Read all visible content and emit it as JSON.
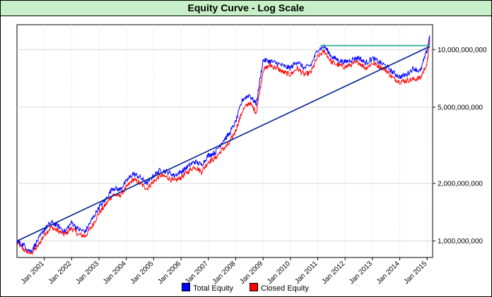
{
  "chart_data": {
    "type": "line",
    "title": "Equity Curve - Log Scale",
    "yscale": "log",
    "ylim": [
      820000000,
      13500000000
    ],
    "xlim": [
      2000.0,
      2015.2
    ],
    "y_ticks": [
      {
        "value": 1000000000,
        "label": "1,000,000,000"
      },
      {
        "value": 2000000000,
        "label": "2,000,000,000"
      },
      {
        "value": 5000000000,
        "label": "5,000,000,000"
      },
      {
        "value": 10000000000,
        "label": "10,000,000,000"
      }
    ],
    "x_ticks": [
      {
        "value": 2001,
        "label": "Jan 2001"
      },
      {
        "value": 2002,
        "label": "Jan 2002"
      },
      {
        "value": 2003,
        "label": "Jan 2003"
      },
      {
        "value": 2004,
        "label": "Jan 2004"
      },
      {
        "value": 2005,
        "label": "Jan 2005"
      },
      {
        "value": 2006,
        "label": "Jan 2006"
      },
      {
        "value": 2007,
        "label": "Jan 2007"
      },
      {
        "value": 2008,
        "label": "Jan 2008"
      },
      {
        "value": 2009,
        "label": "Jan 2009"
      },
      {
        "value": 2010,
        "label": "Jan 2010"
      },
      {
        "value": 2011,
        "label": "Jan 2011"
      },
      {
        "value": 2012,
        "label": "Jan 2012"
      },
      {
        "value": 2013,
        "label": "Jan 2013"
      },
      {
        "value": 2014,
        "label": "Jan 2014"
      },
      {
        "value": 2015,
        "label": "Jan 2015"
      }
    ],
    "grid": true,
    "legend_position": "bottom",
    "series": [
      {
        "name": "Total Equity",
        "color": "#0000ff",
        "x": [
          2000.0,
          2000.25,
          2000.5,
          2000.75,
          2001.0,
          2001.25,
          2001.5,
          2001.75,
          2002.0,
          2002.25,
          2002.5,
          2002.75,
          2003.0,
          2003.25,
          2003.5,
          2003.75,
          2004.0,
          2004.25,
          2004.5,
          2004.75,
          2005.0,
          2005.25,
          2005.5,
          2005.75,
          2006.0,
          2006.25,
          2006.5,
          2006.75,
          2007.0,
          2007.25,
          2007.5,
          2007.75,
          2008.0,
          2008.25,
          2008.5,
          2008.75,
          2009.0,
          2009.25,
          2009.5,
          2009.75,
          2010.0,
          2010.25,
          2010.5,
          2010.75,
          2011.0,
          2011.25,
          2011.5,
          2011.75,
          2012.0,
          2012.25,
          2012.5,
          2012.75,
          2013.0,
          2013.25,
          2013.5,
          2013.75,
          2014.0,
          2014.25,
          2014.5,
          2014.75,
          2015.0,
          2015.1
        ],
        "values": [
          1000000000,
          950000000,
          880000000,
          1000000000,
          1150000000,
          1250000000,
          1200000000,
          1120000000,
          1250000000,
          1150000000,
          1120000000,
          1300000000,
          1500000000,
          1650000000,
          1900000000,
          1850000000,
          2050000000,
          2250000000,
          2150000000,
          2000000000,
          2200000000,
          2350000000,
          2300000000,
          2200000000,
          2300000000,
          2450000000,
          2600000000,
          2500000000,
          2800000000,
          2900000000,
          3300000000,
          3600000000,
          4200000000,
          5500000000,
          5800000000,
          5200000000,
          8800000000,
          8700000000,
          8500000000,
          8200000000,
          8000000000,
          8700000000,
          8000000000,
          8300000000,
          10000000000,
          10400000000,
          9200000000,
          8800000000,
          8600000000,
          8900000000,
          9100000000,
          8500000000,
          9000000000,
          8600000000,
          8200000000,
          7600000000,
          7200000000,
          7400000000,
          8000000000,
          7700000000,
          10000000000,
          11800000000
        ]
      },
      {
        "name": "Closed Equity",
        "color": "#ff0000",
        "x": [
          2000.0,
          2000.25,
          2000.5,
          2000.75,
          2001.0,
          2001.25,
          2001.5,
          2001.75,
          2002.0,
          2002.25,
          2002.5,
          2002.75,
          2003.0,
          2003.25,
          2003.5,
          2003.75,
          2004.0,
          2004.25,
          2004.5,
          2004.75,
          2005.0,
          2005.25,
          2005.5,
          2005.75,
          2006.0,
          2006.25,
          2006.5,
          2006.75,
          2007.0,
          2007.25,
          2007.5,
          2007.75,
          2008.0,
          2008.25,
          2008.5,
          2008.75,
          2009.0,
          2009.25,
          2009.5,
          2009.75,
          2010.0,
          2010.25,
          2010.5,
          2010.75,
          2011.0,
          2011.25,
          2011.5,
          2011.75,
          2012.0,
          2012.25,
          2012.5,
          2012.75,
          2013.0,
          2013.25,
          2013.5,
          2013.75,
          2014.0,
          2014.25,
          2014.5,
          2014.75,
          2015.0,
          2015.1
        ],
        "values": [
          980000000,
          900000000,
          860000000,
          930000000,
          1080000000,
          1180000000,
          1130000000,
          1080000000,
          1170000000,
          1080000000,
          1060000000,
          1200000000,
          1400000000,
          1550000000,
          1750000000,
          1720000000,
          1900000000,
          2100000000,
          2000000000,
          1880000000,
          2050000000,
          2200000000,
          2150000000,
          2050000000,
          2150000000,
          2300000000,
          2450000000,
          2300000000,
          2600000000,
          2700000000,
          3000000000,
          3200000000,
          3800000000,
          4800000000,
          5300000000,
          4700000000,
          7800000000,
          8300000000,
          8000000000,
          7600000000,
          7400000000,
          8000000000,
          7400000000,
          7600000000,
          9200000000,
          9800000000,
          8600000000,
          8300000000,
          8100000000,
          8400000000,
          8600000000,
          8000000000,
          8500000000,
          8200000000,
          7800000000,
          7100000000,
          6800000000,
          6900000000,
          7000000000,
          7100000000,
          8500000000,
          11200000000
        ]
      }
    ],
    "trend_line": {
      "color": "#001f8f",
      "x": [
        2000.0,
        2015.1
      ],
      "values": [
        1000000000,
        10400000000
      ]
    },
    "high_water_line": {
      "color": "#3cb4a0",
      "x": [
        2011.1,
        2015.1
      ],
      "values": [
        10500000000,
        10500000000
      ]
    }
  }
}
